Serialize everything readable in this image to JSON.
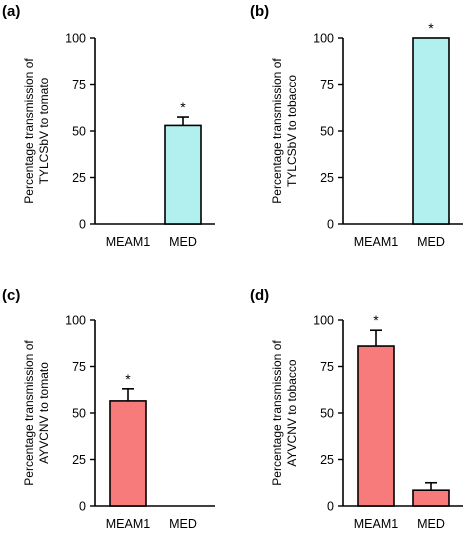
{
  "figure": {
    "background": "#ffffff",
    "axis_color": "#000000"
  },
  "chart_data": [
    {
      "panel": "(a)",
      "type": "bar",
      "categories": [
        "MEAM1",
        "MED"
      ],
      "values": [
        0,
        53
      ],
      "errors": [
        0,
        4.5
      ],
      "significance": [
        "",
        "*"
      ],
      "bar_color": "#b2f0f0",
      "ylabel": [
        "Percentage transmission of",
        "TYLCSbV to tomato"
      ],
      "ylim": [
        0,
        100
      ],
      "yticks": [
        0,
        25,
        50,
        75,
        100
      ],
      "grid": false,
      "legend": "none"
    },
    {
      "panel": "(b)",
      "type": "bar",
      "categories": [
        "MEAM1",
        "MED"
      ],
      "values": [
        0,
        100
      ],
      "errors": [
        0,
        0
      ],
      "significance": [
        "",
        "*"
      ],
      "bar_color": "#b2f0f0",
      "ylabel": [
        "Percentage transmission of",
        "TYLCSbV to tobacco"
      ],
      "ylim": [
        0,
        100
      ],
      "yticks": [
        0,
        25,
        50,
        75,
        100
      ],
      "grid": false,
      "legend": "none"
    },
    {
      "panel": "(c)",
      "type": "bar",
      "categories": [
        "MEAM1",
        "MED"
      ],
      "values": [
        56.5,
        0
      ],
      "errors": [
        6.5,
        0
      ],
      "significance": [
        "*",
        ""
      ],
      "bar_color": "#f77b7b",
      "ylabel": [
        "Percentage transmission of",
        "AYVCNV to tomato"
      ],
      "ylim": [
        0,
        100
      ],
      "yticks": [
        0,
        25,
        50,
        75,
        100
      ],
      "grid": false,
      "legend": "none"
    },
    {
      "panel": "(d)",
      "type": "bar",
      "categories": [
        "MEAM1",
        "MED"
      ],
      "values": [
        86,
        8.5
      ],
      "errors": [
        8.5,
        4
      ],
      "significance": [
        "*",
        ""
      ],
      "bar_color": "#f77b7b",
      "ylabel": [
        "Percentage transmission of",
        "AYVCNV to tobacco"
      ],
      "ylim": [
        0,
        100
      ],
      "yticks": [
        0,
        25,
        50,
        75,
        100
      ],
      "grid": false,
      "legend": "none"
    }
  ]
}
